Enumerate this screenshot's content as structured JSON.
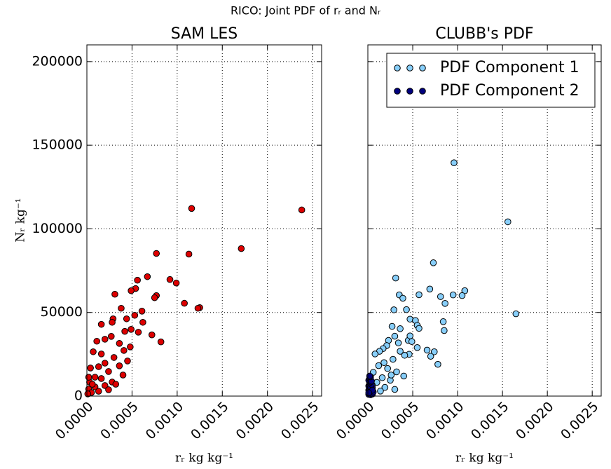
{
  "title": "RICO: Joint PDF of rᵣ and Nᵣ",
  "chart_data": [
    {
      "type": "scatter",
      "title": "SAM LES",
      "x_label": "rᵣ    kg kg⁻¹",
      "y_label": "Nᵣ    kg⁻¹",
      "xlim": [
        0,
        0.0026
      ],
      "ylim": [
        0,
        210000
      ],
      "xticks": [
        {
          "value": 0,
          "label": "0.0000"
        },
        {
          "value": 0.0005,
          "label": "0.0005"
        },
        {
          "value": 0.001,
          "label": "0.0010"
        },
        {
          "value": 0.0015,
          "label": "0.0015"
        },
        {
          "value": 0.002,
          "label": "0.0020"
        },
        {
          "value": 0.0025,
          "label": "0.0025"
        }
      ],
      "yticks": [
        0,
        50000,
        100000,
        150000,
        200000
      ],
      "grid": true,
      "series": [
        {
          "color": "#dd0000",
          "x": [
            0.00116,
            0.00238,
            0.00171,
            0.00077,
            0.00113,
            0.00067,
            0.00056,
            0.00092,
            0.00099,
            0.00054,
            0.00049,
            0.00031,
            0.00077,
            0.00075,
            0.00108,
            0.00125,
            0.00123,
            0.00038,
            0.00061,
            0.00053,
            0.00044,
            0.00029,
            0.00028,
            0.00062,
            0.00016,
            0.00049,
            0.00042,
            0.00057,
            0.00072,
            0.00027,
            0.00082,
            0.0002,
            0.00011,
            0.00036,
            0.00048,
            0.00041,
            7e-05,
            0.00016,
            0.0003,
            0.00045,
            0.0002,
            0.00036,
            0.00013,
            4e-05,
            0.00024,
            0.0004,
            9e-05,
            0.00016,
            0.00028,
            3e-05,
            0.0002,
            9e-05,
            2e-05,
            0.00013,
            5e-05,
            0.00024,
            1e-05,
            6e-05,
            2e-05,
            0.00032
          ],
          "values": [
            112200,
            111300,
            88200,
            85300,
            84900,
            71400,
            69300,
            69700,
            67600,
            64300,
            63000,
            60900,
            60100,
            58800,
            55500,
            52900,
            52500,
            52500,
            50800,
            48300,
            46200,
            46200,
            44100,
            44100,
            42900,
            39900,
            38700,
            38200,
            36600,
            35700,
            32400,
            34000,
            32800,
            31500,
            29400,
            27300,
            26500,
            25200,
            23100,
            21000,
            19700,
            18100,
            17600,
            16800,
            14700,
            12600,
            11300,
            10500,
            8400,
            8400,
            6300,
            5500,
            4200,
            2900,
            2100,
            3800,
            1300,
            7100,
            11300,
            7100
          ]
        }
      ]
    },
    {
      "type": "scatter",
      "title": "CLUBB's PDF",
      "x_label": "rᵣ    kg kg⁻¹",
      "sharey": true,
      "xlim": [
        0,
        0.0026
      ],
      "ylim": [
        0,
        210000
      ],
      "xticks": [
        {
          "value": 0,
          "label": "0.0000"
        },
        {
          "value": 0.0005,
          "label": "0.0005"
        },
        {
          "value": 0.001,
          "label": "0.0010"
        },
        {
          "value": 0.0015,
          "label": "0.0015"
        },
        {
          "value": 0.002,
          "label": "0.0020"
        },
        {
          "value": 0.0025,
          "label": "0.0025"
        }
      ],
      "yticks": [
        0,
        50000,
        100000,
        150000,
        200000
      ],
      "grid": true,
      "legend": "upper right",
      "series": [
        {
          "name": "PDF Component 1",
          "color": "#87cefa",
          "x": [
            0.00096,
            0.00156,
            0.00165,
            0.00073,
            0.00031,
            0.00069,
            0.00108,
            0.00095,
            0.00105,
            0.00081,
            0.00057,
            0.00035,
            0.00039,
            0.00086,
            0.00029,
            0.00043,
            0.00047,
            0.00053,
            0.00055,
            0.00057,
            0.00084,
            0.00085,
            0.00036,
            0.00027,
            0.00045,
            0.00047,
            0.00049,
            0.00034,
            0.0003,
            0.00023,
            0.00021,
            0.00017,
            0.00013,
            8e-05,
            0.00046,
            0.00055,
            0.00074,
            0.00078,
            0.00036,
            0.00041,
            0.00028,
            0.00018,
            0.00022,
            0.00012,
            6e-05,
            0.00032,
            0.0004,
            0.00016,
            0.00025,
            0.0001,
            5e-05,
            0.00019,
            0.0003,
            0.00014,
            3e-05,
            0.00066,
            0.0007,
            0.00026
          ],
          "values": [
            139500,
            104200,
            49200,
            79700,
            70600,
            64000,
            63000,
            60500,
            60100,
            59500,
            60600,
            60500,
            58500,
            55400,
            51600,
            51700,
            46000,
            45200,
            42300,
            40500,
            44500,
            39200,
            40300,
            41700,
            33300,
            36000,
            32600,
            31800,
            35800,
            33300,
            30200,
            28400,
            26800,
            25200,
            25000,
            29000,
            26500,
            19000,
            26800,
            24400,
            22000,
            20000,
            16500,
            18200,
            14200,
            14500,
            12000,
            11000,
            9500,
            8200,
            6500,
            5200,
            4000,
            3000,
            2000,
            27500,
            23800,
            12600
          ]
        },
        {
          "name": "PDF Component 2",
          "color": "#00007f",
          "x": [
            1e-05,
            2e-05,
            3e-05,
            4e-05,
            5e-05,
            6e-05,
            1e-05,
            2e-05,
            3e-05,
            4e-05,
            5e-05,
            1e-05,
            2e-05,
            3e-05,
            4e-05,
            2e-05,
            3e-05,
            1e-05,
            2e-05,
            4e-05,
            3e-05,
            5e-05,
            2e-05,
            1e-05
          ],
          "values": [
            1000,
            1500,
            800,
            2000,
            1200,
            2500,
            3500,
            4000,
            3000,
            4500,
            5000,
            6000,
            6500,
            5500,
            7000,
            8000,
            8500,
            9500,
            10500,
            9000,
            11500,
            3500,
            12000,
            2000
          ]
        }
      ]
    }
  ]
}
